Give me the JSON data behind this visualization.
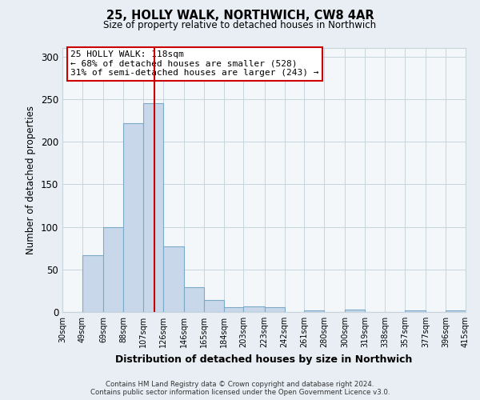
{
  "title": "25, HOLLY WALK, NORTHWICH, CW8 4AR",
  "subtitle": "Size of property relative to detached houses in Northwich",
  "bar_values": [
    0,
    67,
    100,
    222,
    245,
    77,
    29,
    14,
    6,
    7,
    6,
    0,
    2,
    0,
    3,
    0,
    0,
    2,
    0,
    2
  ],
  "bin_edges": [
    30,
    49,
    69,
    88,
    107,
    126,
    146,
    165,
    184,
    203,
    223,
    242,
    261,
    280,
    300,
    319,
    338,
    357,
    377,
    396,
    415
  ],
  "x_labels": [
    "30sqm",
    "49sqm",
    "69sqm",
    "88sqm",
    "107sqm",
    "126sqm",
    "146sqm",
    "165sqm",
    "184sqm",
    "203sqm",
    "223sqm",
    "242sqm",
    "261sqm",
    "280sqm",
    "300sqm",
    "319sqm",
    "338sqm",
    "357sqm",
    "377sqm",
    "396sqm",
    "415sqm"
  ],
  "ylabel": "Number of detached properties",
  "xlabel": "Distribution of detached houses by size in Northwich",
  "ylim": [
    0,
    310
  ],
  "bar_color": "#c8d8ea",
  "bar_edge_color": "#7aaac8",
  "vline_x": 118,
  "vline_color": "#cc0000",
  "annotation_title": "25 HOLLY WALK: 118sqm",
  "annotation_line1": "← 68% of detached houses are smaller (528)",
  "annotation_line2": "31% of semi-detached houses are larger (243) →",
  "annotation_box_color": "#ffffff",
  "annotation_box_edge": "#cc0000",
  "footer_line1": "Contains HM Land Registry data © Crown copyright and database right 2024.",
  "footer_line2": "Contains public sector information licensed under the Open Government Licence v3.0.",
  "background_color": "#e8eef4",
  "plot_background": "#f4f7fa",
  "grid_color": "#c8d4dc"
}
